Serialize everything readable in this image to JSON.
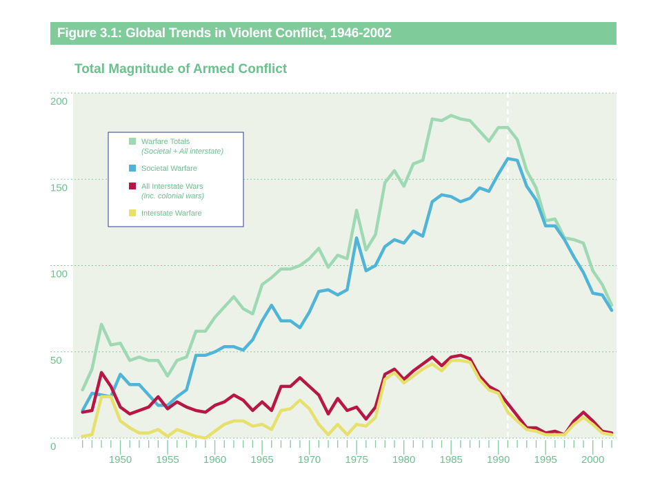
{
  "header": {
    "title": "Figure 3.1: Global Trends in Violent Conflict, 1946-2002"
  },
  "chart_data": {
    "type": "line",
    "title": "Figure 3.1: Global Trends in Violent Conflict, 1946-2002",
    "subtitle": "Total Magnitude of Armed Conflict",
    "xlabel": "",
    "ylabel": "",
    "xlim": [
      1945,
      2002.5
    ],
    "ylim": [
      0,
      200
    ],
    "x_ticks": [
      "1950",
      "1955",
      "1960",
      "1965",
      "1970",
      "1975",
      "1980",
      "1985",
      "1990",
      "1995",
      "2000"
    ],
    "y_ticks": [
      "0",
      "50",
      "100",
      "150",
      "200"
    ],
    "grid": true,
    "legend_position": "top-left",
    "annotations": [
      {
        "type": "vertical-dashed-line",
        "x": 1991
      }
    ],
    "x": [
      1946,
      1947,
      1948,
      1949,
      1950,
      1951,
      1952,
      1953,
      1954,
      1955,
      1956,
      1957,
      1958,
      1959,
      1960,
      1961,
      1962,
      1963,
      1964,
      1965,
      1966,
      1967,
      1968,
      1969,
      1970,
      1971,
      1972,
      1973,
      1974,
      1975,
      1976,
      1977,
      1978,
      1979,
      1980,
      1981,
      1982,
      1983,
      1984,
      1985,
      1986,
      1987,
      1988,
      1989,
      1990,
      1991,
      1992,
      1993,
      1994,
      1995,
      1996,
      1997,
      1998,
      1999,
      2000,
      2001,
      2002
    ],
    "series": [
      {
        "name": "Warfare Totals",
        "name_note": "(Societal + All interstate)",
        "color": "#9ed9b4",
        "values": [
          28,
          40,
          66,
          54,
          55,
          45,
          47,
          45,
          45,
          36,
          45,
          47,
          62,
          62,
          70,
          76,
          82,
          75,
          72,
          89,
          93,
          98,
          98,
          100,
          104,
          110,
          99,
          106,
          104,
          132,
          109,
          118,
          148,
          155,
          146,
          159,
          161,
          185,
          184,
          187,
          185,
          184,
          178,
          172,
          180,
          180,
          173,
          155,
          145,
          126,
          127,
          116,
          115,
          113,
          97,
          89,
          77
        ]
      },
      {
        "name": "Societal Warfare",
        "color": "#4fb4d8",
        "values": [
          16,
          26,
          25,
          24,
          37,
          31,
          31,
          25,
          19,
          19,
          24,
          28,
          48,
          48,
          50,
          53,
          53,
          51,
          57,
          68,
          77,
          68,
          68,
          64,
          73,
          85,
          86,
          83,
          86,
          116,
          97,
          100,
          111,
          115,
          113,
          120,
          117,
          137,
          141,
          140,
          137,
          139,
          145,
          143,
          153,
          162,
          161,
          146,
          138,
          123,
          123,
          115,
          105,
          96,
          84,
          83,
          74
        ]
      },
      {
        "name": "All Interstate Wars",
        "name_note": "(inc. colonial wars)",
        "color": "#b81645",
        "values": [
          15,
          16,
          38,
          30,
          18,
          14,
          16,
          18,
          24,
          17,
          21,
          18,
          16,
          15,
          19,
          21,
          25,
          22,
          16,
          21,
          16,
          30,
          30,
          35,
          30,
          25,
          14,
          23,
          16,
          18,
          11,
          18,
          37,
          40,
          34,
          39,
          43,
          47,
          42,
          47,
          48,
          46,
          36,
          30,
          27,
          20,
          13,
          6,
          6,
          3,
          4,
          2,
          10,
          15,
          10,
          4,
          3
        ]
      },
      {
        "name": "Interstate Warfare",
        "color": "#e6e06c",
        "values": [
          1,
          2,
          24,
          24,
          10,
          6,
          3,
          3,
          5,
          1,
          5,
          3,
          1,
          0,
          4,
          8,
          10,
          10,
          7,
          8,
          5,
          16,
          17,
          22,
          17,
          8,
          2,
          8,
          2,
          8,
          7,
          12,
          34,
          38,
          32,
          36,
          40,
          43,
          39,
          45,
          45,
          44,
          34,
          28,
          26,
          15,
          10,
          5,
          4,
          2,
          2,
          2,
          8,
          12,
          8,
          3,
          2
        ]
      }
    ]
  }
}
